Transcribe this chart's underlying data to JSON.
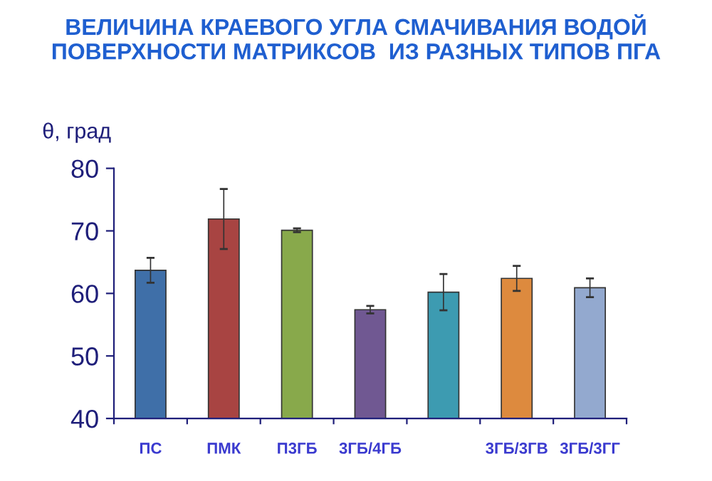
{
  "chart_data": {
    "type": "bar",
    "title": "ВЕЛИЧИНА КРАЕВОГО УГЛА СМАЧИВАНИЯ ВОДОЙ\nПОВЕРХНОСТИ МАТРИКСОВ  ИЗ РАЗНЫХ ТИПОВ ПГА",
    "ylabel": "θ, град",
    "categories": [
      "ПС",
      "ПМК",
      "П3ГБ",
      "3ГБ/4ГБ",
      null,
      "3ГБ/3ГВ",
      "3ГБ/3ГГ"
    ],
    "values": [
      63.7,
      71.9,
      70.1,
      57.4,
      60.2,
      62.4,
      60.9
    ],
    "errors": [
      2.0,
      4.8,
      0.3,
      0.6,
      2.9,
      2.0,
      1.5
    ],
    "colors": [
      "#3f6fa8",
      "#a84442",
      "#88a94b",
      "#705892",
      "#3d9bb1",
      "#dd8a3e",
      "#93a9cf"
    ],
    "ylim": [
      40,
      80
    ],
    "yticks": [
      40,
      50,
      60,
      70,
      80
    ],
    "grid": false,
    "legend": false
  }
}
